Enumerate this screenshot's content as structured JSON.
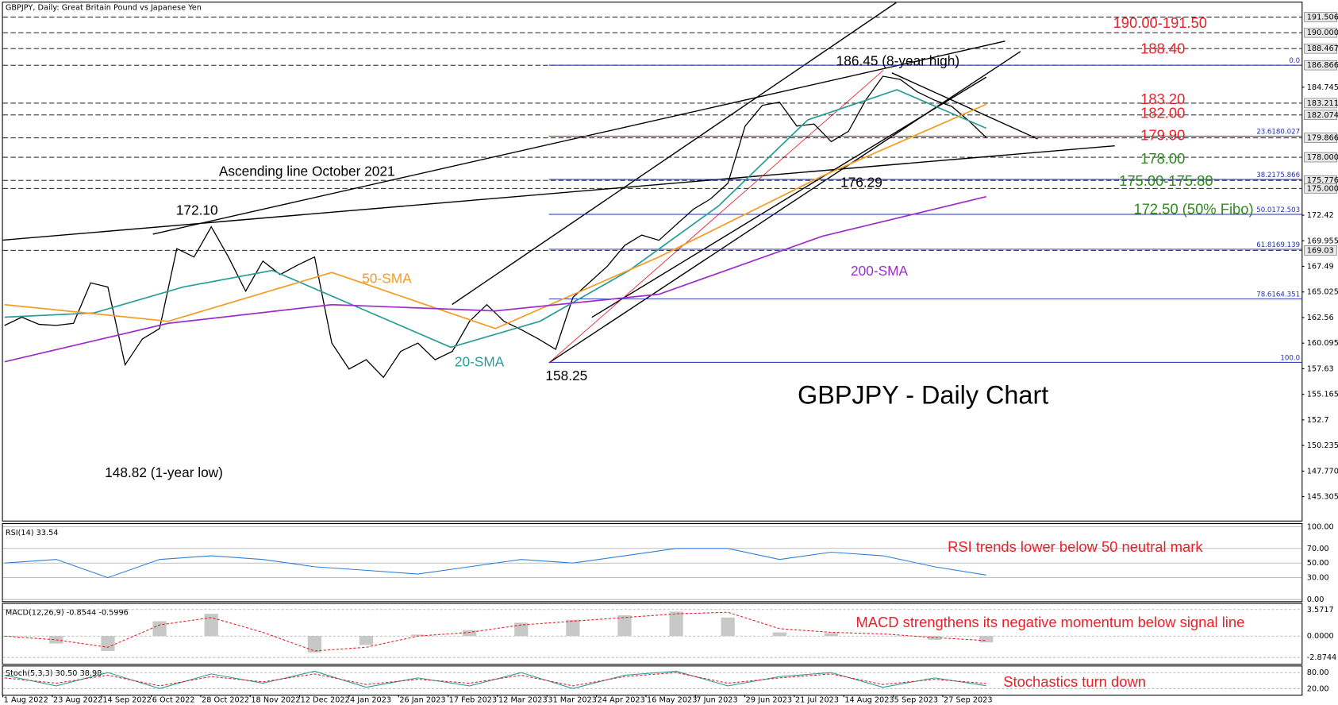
{
  "chart_data": {
    "type": "line",
    "title": "GBPJPY, Daily:  Great Britain Pound vs Japanese Yen",
    "xticks": [
      "1 Aug 2022",
      "23 Aug 2022",
      "14 Sep 2022",
      "6 Oct 2022",
      "28 Oct 2022",
      "18 Nov 2022",
      "12 Dec 2022",
      "4 Jan 2023",
      "26 Jan 2023",
      "17 Feb 2023",
      "12 Mar 2023",
      "31 Mar 2023",
      "24 Apr 2023",
      "16 May 2023",
      "7 Jun 2023",
      "29 Jun 2023",
      "21 Jul 2023",
      "14 Aug 2023",
      "5 Sep 2023",
      "27 Sep 2023"
    ],
    "ylim": [
      143.0,
      192.9
    ],
    "yticks": [
      145.305,
      {
        "value": 147.77,
        "label": "147.770"
      },
      152.7,
      {
        "value": 150.235,
        "label": "150.235"
      },
      155.165,
      157.63,
      160.095,
      162.56,
      165.025,
      167.49,
      169.955,
      172.42,
      184.745
    ],
    "level_lines": [
      191.506,
      {
        "value": 190.0,
        "label": "190.000"
      },
      188.467,
      186.866,
      183.211,
      182.074,
      179.866,
      {
        "value": 178.0,
        "label": "178.000"
      },
      175.776,
      {
        "value": 175.0,
        "label": "175.000"
      },
      169.03
    ],
    "fibo_lines": [
      {
        "value": 186.866,
        "label": "0.0"
      },
      {
        "value": 180.027,
        "label": "23.6180.027"
      },
      {
        "value": 175.866,
        "label": "38.2175.866"
      },
      {
        "value": 172.503,
        "label": "50.0172.503"
      },
      {
        "value": 169.139,
        "label": "61.8169.139"
      },
      {
        "value": 164.351,
        "label": "78.6164.351"
      },
      {
        "value": 158.25,
        "label": "100.0"
      }
    ],
    "series": [
      {
        "name": "GBPJPY",
        "color": "#000000",
        "values": [
          161.8,
          162.6,
          161.9,
          161.8,
          162.0,
          165.9,
          165.5,
          158.0,
          160.5,
          161.5,
          169.2,
          168.4,
          171.3,
          168.4,
          165.1,
          168.0,
          166.7,
          167.6,
          168.4,
          160.1,
          157.6,
          158.5,
          156.8,
          159.3,
          160.1,
          158.5,
          159.3,
          162.2,
          163.8,
          162.2,
          161.4,
          160.5,
          159.5,
          164.5,
          166.0,
          167.5,
          169.5,
          170.5,
          170.0,
          171.5,
          173.0,
          174.0,
          175.5,
          181.0,
          183.0,
          183.3,
          181.0,
          181.2,
          179.5,
          180.5,
          183.5,
          185.8,
          185.5,
          184.3,
          183.5,
          182.9,
          181.5,
          179.9
        ]
      },
      {
        "name": "20-SMA",
        "color": "#2a9d9a",
        "values": [
          162.6,
          163.0,
          165.5,
          167.1,
          163.4,
          159.7,
          162.2,
          167.1,
          173.3,
          181.6,
          184.5,
          180.8
        ]
      },
      {
        "name": "50-SMA",
        "color": "#f39c26",
        "values": [
          163.8,
          162.2,
          166.9,
          161.5,
          168.4,
          176.2,
          183.1
        ]
      },
      {
        "name": "200-SMA",
        "color": "#9b30c8",
        "values": [
          158.3,
          162.0,
          163.8,
          163.2,
          164.8,
          170.4,
          174.2
        ]
      }
    ],
    "annotations": [
      "190.00-191.50",
      "188.40",
      "186.45 (8-year high)",
      "183.20",
      "182.00",
      "179.90",
      "178.00",
      "Ascending line October 2021",
      "176.29",
      "175.00-175.80",
      "172.10",
      "172.50 (50% Fibo)",
      "200-SMA",
      "50-SMA",
      "20-SMA",
      "158.25",
      "GBPJPY - Daily Chart",
      "148.82 (1-year low)"
    ],
    "rsi": {
      "title": "RSI(14) 33.54",
      "ylim": [
        0,
        100
      ],
      "yticks": [
        {
          "value": 100,
          "label": "100.00"
        },
        {
          "value": 70,
          "label": "70.00"
        },
        {
          "value": 50,
          "label": "50.00"
        },
        {
          "value": 30,
          "label": "30.00"
        },
        {
          "value": 0,
          "label": "0.00"
        }
      ],
      "color": "#2f7fd8",
      "values": [
        50,
        55,
        30,
        55,
        60,
        55,
        45,
        40,
        35,
        45,
        55,
        50,
        60,
        70,
        70,
        55,
        65,
        60,
        45,
        33.54
      ],
      "note": "RSI trends lower below 50 neutral mark"
    },
    "macd": {
      "title": "MACD(12,26,9) -0.8544 -0.5996",
      "ylim": [
        -3.5,
        4.0
      ],
      "yticks": [
        3.5717,
        {
          "value": 0,
          "label": "0.0000"
        },
        -2.8744
      ],
      "histogram": [
        0,
        -1,
        -2,
        2,
        3,
        0,
        -2.2,
        -1.2,
        0.2,
        0.8,
        1.8,
        2.2,
        2.8,
        3.3,
        2.5,
        0.5,
        0.4,
        0,
        -0.5,
        -0.8544
      ],
      "signal": [
        0,
        -0.5,
        -1.5,
        1.5,
        2.5,
        0.5,
        -2.0,
        -1.5,
        0,
        0.5,
        1.5,
        2.0,
        2.5,
        3.0,
        3.2,
        1.0,
        0.5,
        0.3,
        -0.2,
        -0.5996
      ],
      "note": "MACD strengthens its negative momentum below signal line"
    },
    "stoch": {
      "title": "Stoch(5,3,3) 30.50 38.98",
      "ylim": [
        0,
        100
      ],
      "yticks": [
        {
          "value": 80,
          "label": "80.00"
        },
        {
          "value": 20,
          "label": "20.00"
        }
      ],
      "main": [
        70,
        30,
        80,
        20,
        75,
        40,
        85,
        25,
        60,
        30,
        80,
        20,
        70,
        85,
        30,
        65,
        80,
        25,
        60,
        30.5
      ],
      "signal": [
        60,
        40,
        70,
        30,
        65,
        45,
        75,
        35,
        55,
        40,
        70,
        30,
        65,
        80,
        40,
        60,
        75,
        35,
        55,
        38.98
      ],
      "note": "Stochastics turn down"
    }
  }
}
